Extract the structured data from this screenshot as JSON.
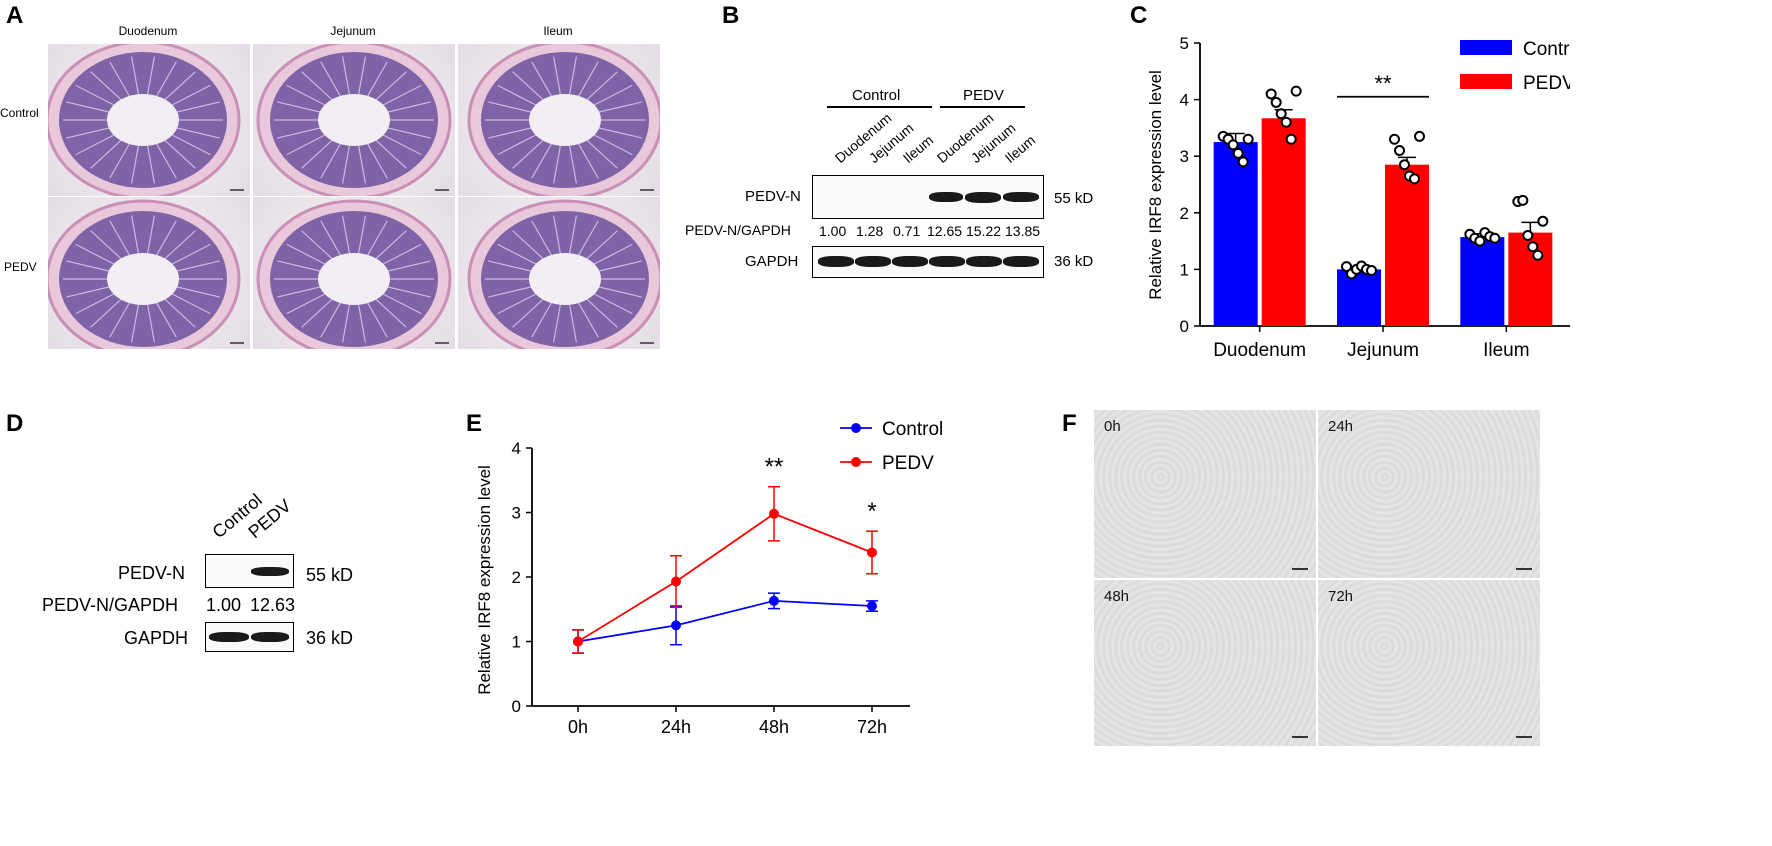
{
  "panels": {
    "a": "A",
    "b": "B",
    "c": "C",
    "d": "D",
    "e": "E",
    "f": "F"
  },
  "panel_a": {
    "columns": [
      "Duodenum",
      "Jejunum",
      "Ileum"
    ],
    "rows": [
      "Control",
      "PEDV"
    ]
  },
  "panel_b": {
    "group_control": "Control",
    "group_pedv": "PEDV",
    "lanes": [
      "Duodenum",
      "Jejunum",
      "Ileum",
      "Duodenum",
      "Jejunum",
      "Ileum"
    ],
    "row1_label": "PEDV-N",
    "row1_kd": "55 kD",
    "ratio_label": "PEDV-N/GAPDH",
    "ratios": [
      "1.00",
      "1.28",
      "0.71",
      "12.65",
      "15.22",
      "13.85"
    ],
    "row2_label": "GAPDH",
    "row2_kd": "36 kD"
  },
  "panel_d": {
    "lanes": [
      "Control",
      "PEDV"
    ],
    "row1_label": "PEDV-N",
    "row1_kd": "55 kD",
    "ratio_label": "PEDV-N/GAPDH",
    "ratios": [
      "1.00",
      "12.63"
    ],
    "row2_label": "GAPDH",
    "row2_kd": "36 kD"
  },
  "panel_f": {
    "tiles": [
      "0h",
      "24h",
      "48h",
      "72h"
    ]
  },
  "chart_data": [
    {
      "id": "C",
      "type": "bar",
      "categories": [
        "Duodenum",
        "Jejunum",
        "Ileum"
      ],
      "ylabel": "Relative IRF8 expression level",
      "ylim": [
        0,
        5
      ],
      "yticks": [
        "0",
        "1",
        "2",
        "3",
        "4",
        "5"
      ],
      "legend_position": "top-right",
      "series": [
        {
          "name": "Control",
          "color": "#0000ff",
          "values": [
            3.25,
            1.0,
            1.57
          ],
          "errors": [
            0.15,
            0.05,
            0.06
          ],
          "points": [
            [
              3.35,
              3.3,
              3.2,
              3.05,
              2.9,
              3.3
            ],
            [
              1.05,
              0.92,
              1.0,
              1.06,
              1.0,
              0.98
            ],
            [
              1.62,
              1.55,
              1.5,
              1.65,
              1.58,
              1.55
            ]
          ]
        },
        {
          "name": "PEDV",
          "color": "#ff0000",
          "values": [
            3.67,
            2.85,
            1.65
          ],
          "errors": [
            0.15,
            0.13,
            0.18
          ],
          "points": [
            [
              4.1,
              3.95,
              3.75,
              3.6,
              3.3,
              4.15
            ],
            [
              3.3,
              3.1,
              2.85,
              2.65,
              2.6,
              3.35
            ],
            [
              2.2,
              2.22,
              1.6,
              1.4,
              1.25,
              1.85
            ]
          ]
        }
      ],
      "annotations": [
        {
          "text": "**",
          "category": "Jejunum"
        }
      ]
    },
    {
      "id": "E",
      "type": "line",
      "x": [
        "0h",
        "24h",
        "48h",
        "72h"
      ],
      "ylabel": "Relative IRF8 expression level",
      "ylim": [
        0,
        4
      ],
      "yticks": [
        "0",
        "1",
        "2",
        "3",
        "4"
      ],
      "legend_position": "top-right",
      "series": [
        {
          "name": "Control",
          "color": "#0000ff",
          "values": [
            1.0,
            1.25,
            1.63,
            1.55
          ],
          "errors": [
            0.18,
            0.3,
            0.12,
            0.08
          ]
        },
        {
          "name": "PEDV",
          "color": "#ff0000",
          "values": [
            1.0,
            1.93,
            2.98,
            2.38
          ],
          "errors": [
            0.18,
            0.4,
            0.42,
            0.33
          ]
        }
      ],
      "annotations": [
        {
          "text": "**",
          "x": "48h"
        },
        {
          "text": "*",
          "x": "72h"
        }
      ]
    }
  ]
}
